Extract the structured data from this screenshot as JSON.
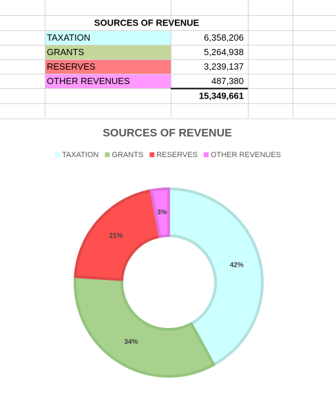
{
  "table": {
    "title": "SOURCES OF REVENUE",
    "rows": [
      [
        "TAXATION",
        "6,358,206"
      ],
      [
        "GRANTS",
        "5,264,938"
      ],
      [
        "RESERVES",
        "3,239,137"
      ],
      [
        "OTHER REVENUES",
        "487,380"
      ]
    ],
    "row_colors": [
      "#ccffff",
      "#c4d79b",
      "#ff7c80",
      "#ff99ff"
    ],
    "total": "15,349,661"
  },
  "chart_data": {
    "type": "pie",
    "donut": true,
    "title": "SOURCES OF REVENUE",
    "categories": [
      "TAXATION",
      "GRANTS",
      "RESERVES",
      "OTHER REVENUES"
    ],
    "values": [
      42,
      34,
      21,
      3
    ],
    "value_labels": [
      "42%",
      "34%",
      "21%",
      "3%"
    ],
    "colors": [
      "#ccffff",
      "#a9d18e",
      "#ff5050",
      "#ff80ff"
    ],
    "legend": "top"
  }
}
